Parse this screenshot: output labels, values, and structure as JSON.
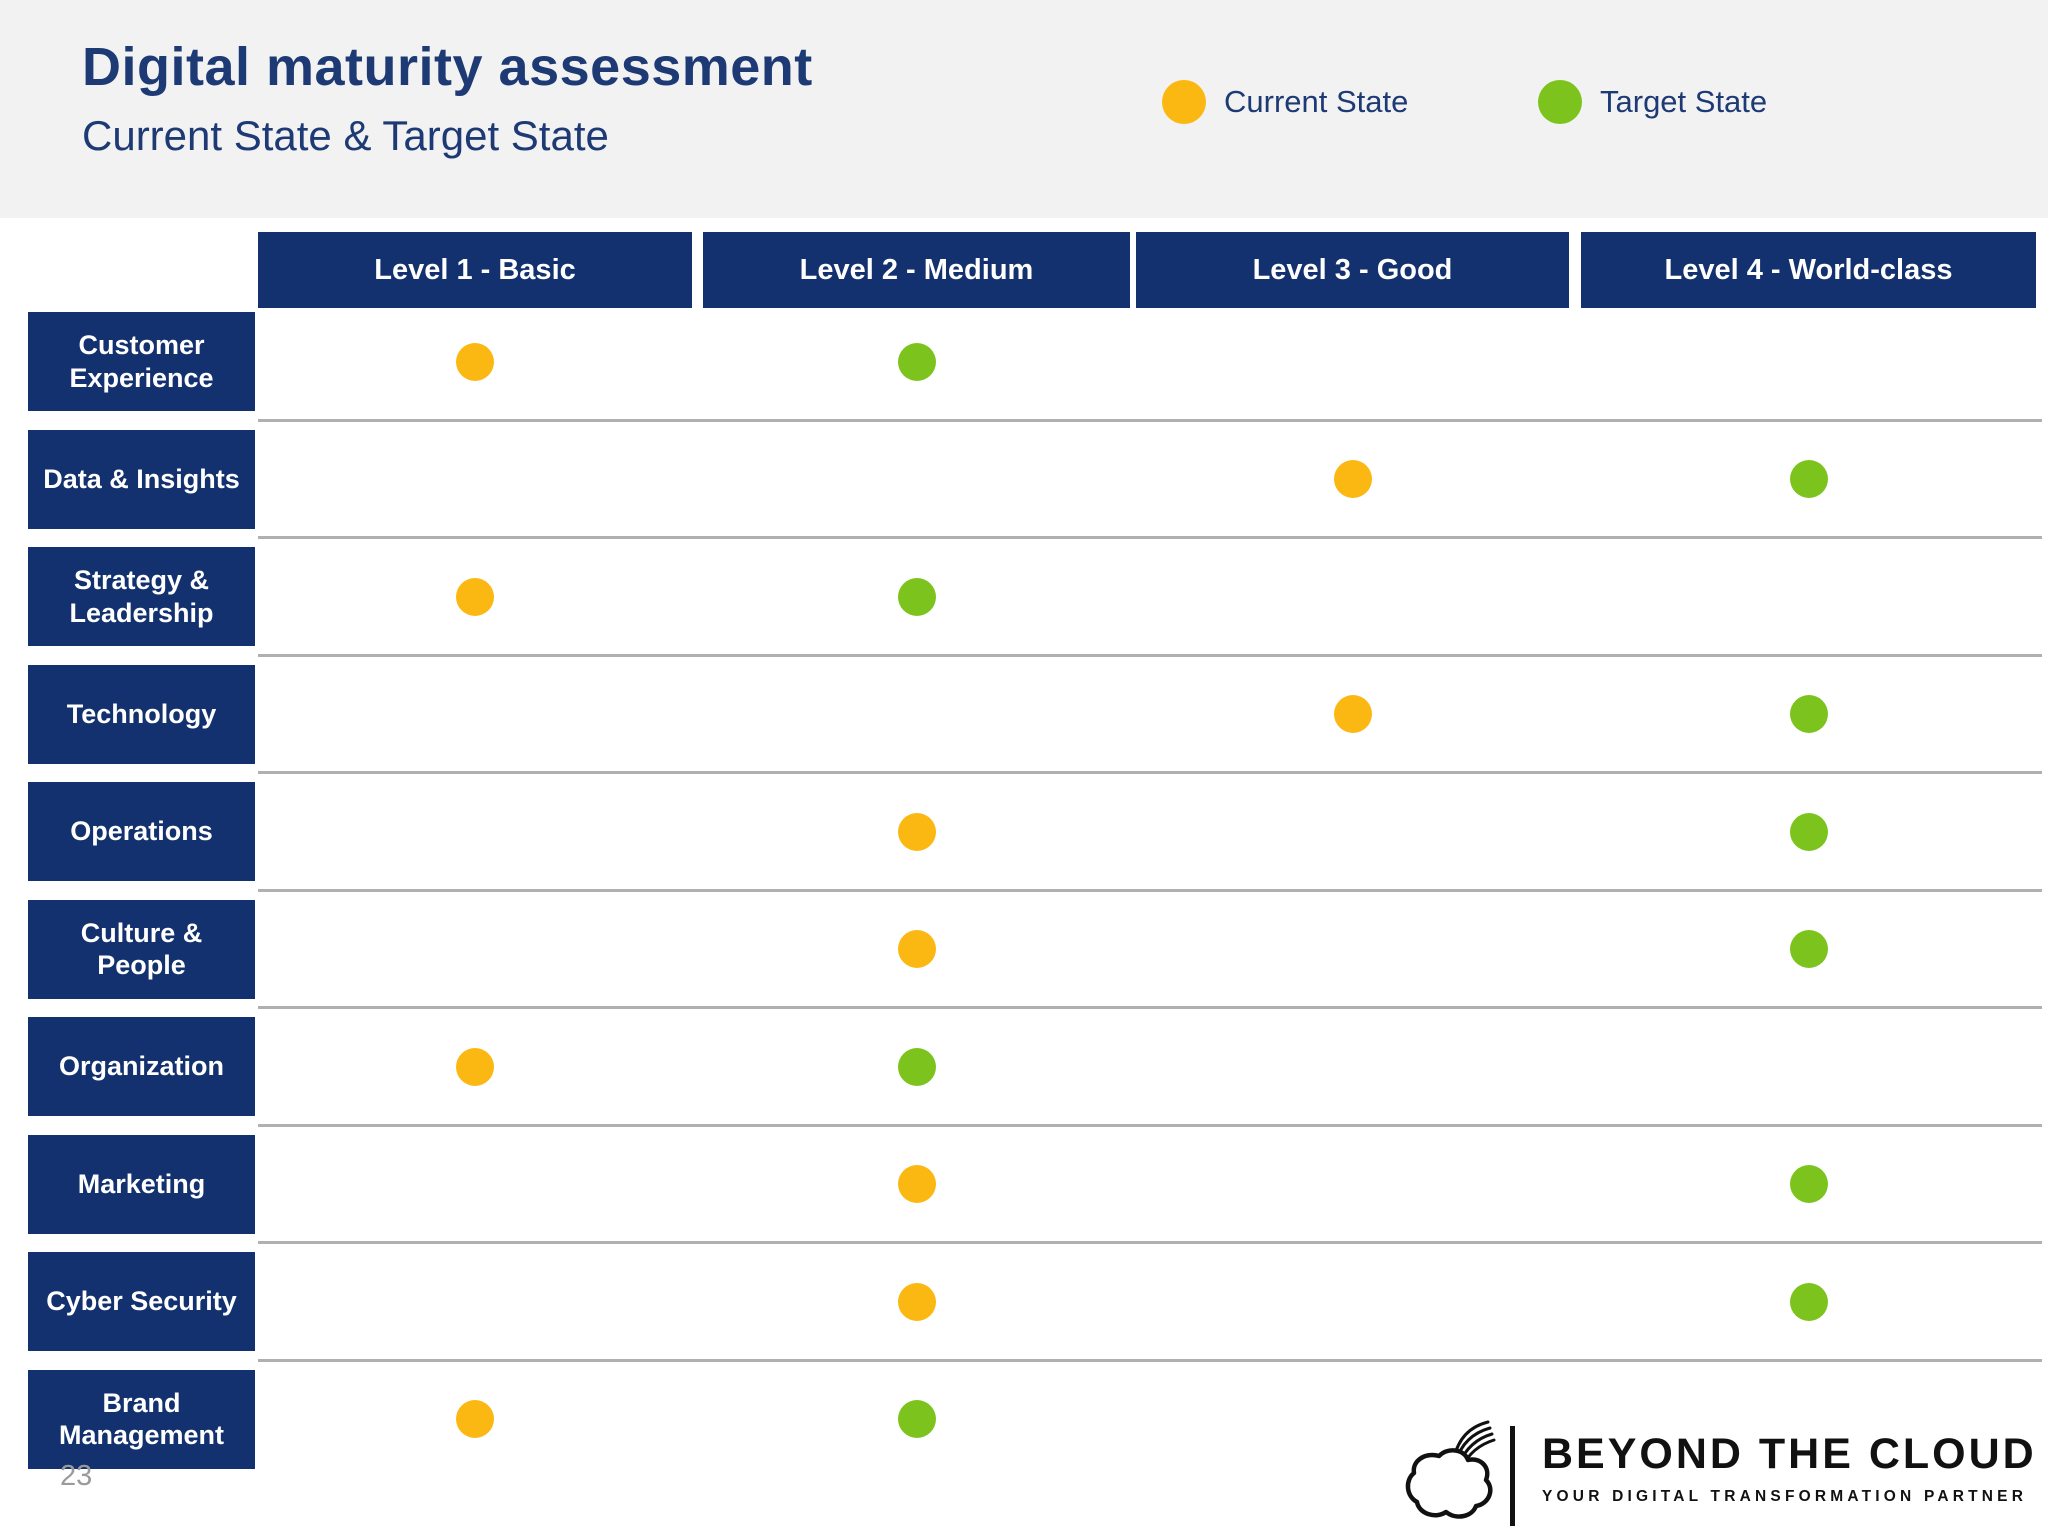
{
  "header": {
    "title": "Digital maturity assessment",
    "subtitle": "Current State & Target State",
    "legend": [
      {
        "key": "current",
        "label": "Current State",
        "color": "#fbb812"
      },
      {
        "key": "target",
        "label": "Target State",
        "color": "#7cc41d"
      }
    ]
  },
  "table": {
    "columns": [
      "Level 1 - Basic",
      "Level 2 - Medium",
      "Level 3 - Good",
      "Level 4 - World-class"
    ],
    "rows": [
      {
        "label": "Customer Experience",
        "current": 1,
        "target": 2
      },
      {
        "label": "Data & Insights",
        "current": 3,
        "target": 4
      },
      {
        "label": "Strategy & Leadership",
        "current": 1,
        "target": 2
      },
      {
        "label": "Technology",
        "current": 3,
        "target": 4
      },
      {
        "label": "Operations",
        "current": 2,
        "target": 4
      },
      {
        "label": "Culture & People",
        "current": 2,
        "target": 4
      },
      {
        "label": "Organization",
        "current": 1,
        "target": 2
      },
      {
        "label": "Marketing",
        "current": 2,
        "target": 4
      },
      {
        "label": "Cyber Security",
        "current": 2,
        "target": 4
      },
      {
        "label": "Brand Management",
        "current": 1,
        "target": 2
      }
    ]
  },
  "footer": {
    "page_number": "23",
    "logo": {
      "icon": "cloud-icon",
      "name": "BEYOND THE CLOUD",
      "tagline": "YOUR DIGITAL TRANSFORMATION PARTNER"
    }
  },
  "colors": {
    "navy_box": "#12316e",
    "navy_text": "#1e3a75",
    "current_state": "#fbb812",
    "target_state": "#7cc41d",
    "header_band": "#f2f2f3",
    "row_separator": "#b0b0b0"
  },
  "chart_data": {
    "type": "scatter",
    "title": "Digital maturity assessment",
    "subtitle": "Current State & Target State",
    "x_levels": [
      "Level 1 - Basic",
      "Level 2 - Medium",
      "Level 3 - Good",
      "Level 4 - World-class"
    ],
    "categories": [
      "Customer Experience",
      "Data & Insights",
      "Strategy & Leadership",
      "Technology",
      "Operations",
      "Culture & People",
      "Organization",
      "Marketing",
      "Cyber Security",
      "Brand Management"
    ],
    "series": [
      {
        "name": "Current State",
        "color": "#fbb812",
        "values": [
          1,
          3,
          1,
          3,
          2,
          2,
          1,
          2,
          2,
          1
        ]
      },
      {
        "name": "Target State",
        "color": "#7cc41d",
        "values": [
          2,
          4,
          2,
          4,
          4,
          4,
          2,
          4,
          4,
          2
        ]
      }
    ],
    "legend_position": "top-right",
    "grid": "horizontal row separators only",
    "xlim": [
      1,
      4
    ],
    "note": "values are maturity level index (1-4) per category"
  }
}
